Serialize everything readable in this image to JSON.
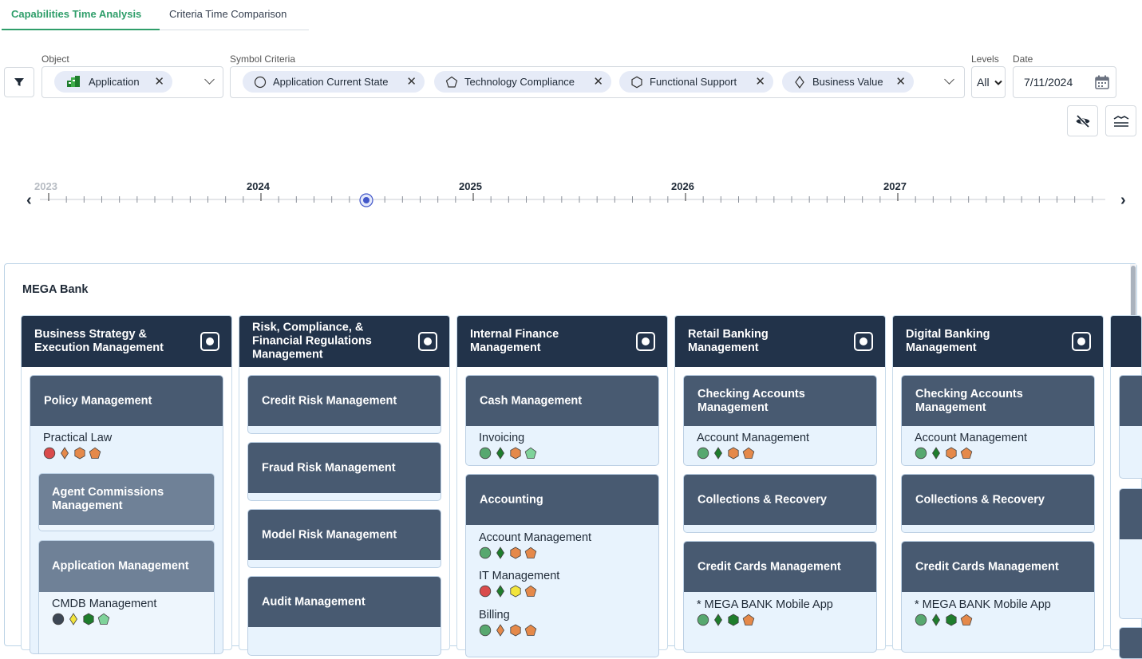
{
  "tabs": [
    {
      "label": "Capabilities Time Analysis",
      "active": true
    },
    {
      "label": "Criteria Time Comparison",
      "active": false
    }
  ],
  "filters": {
    "object_label": "Object",
    "object_value": "Application",
    "symbol_criteria_label": "Symbol Criteria",
    "symbol_criteria": [
      {
        "label": "Application Current State",
        "symbol": "circle"
      },
      {
        "label": "Technology Compliance",
        "symbol": "pentagon"
      },
      {
        "label": "Functional Support",
        "symbol": "hexagon"
      },
      {
        "label": "Business Value",
        "symbol": "diamond"
      }
    ],
    "levels_label": "Levels",
    "levels_value": "All",
    "date_label": "Date",
    "date_value": "7/11/2024"
  },
  "icons": {
    "filter": "filter-icon",
    "hide": "eye-off-icon",
    "layers": "layers-icon",
    "calendar": "calendar-icon"
  },
  "timeline": {
    "years": [
      "2023",
      "2024",
      "2025",
      "2026",
      "2027"
    ],
    "selected_date": "7/11/2024"
  },
  "colors": {
    "red": "#d94b4b",
    "green": "#57a86f",
    "dark_green": "#1e7d2c",
    "orange": "#e5894a",
    "yellow": "#f2e53d",
    "light_green": "#7fd39a",
    "dark": "#3d4754"
  },
  "map": {
    "title": "MEGA Bank",
    "columns": [
      {
        "title": "Business Strategy & Execution Management",
        "cards": [
          {
            "title": "Policy Management",
            "apps": [
              {
                "name": "Practical Law",
                "symbols": [
                  "circle:red",
                  "diamond:orange",
                  "hexagon:orange",
                  "pentagon:orange"
                ]
              }
            ],
            "subcards": [
              {
                "title": "Agent Commissions Management",
                "apps": []
              },
              {
                "title": "Application Management",
                "apps": [
                  {
                    "name": "CMDB Management",
                    "symbols": [
                      "circle:dark",
                      "diamond:yellow",
                      "hexagon:dark_green",
                      "pentagon:light_green"
                    ]
                  }
                ]
              }
            ]
          }
        ]
      },
      {
        "title": "Risk, Compliance, & Financial Regulations Management",
        "cards": [
          {
            "title": "Credit Risk Management",
            "apps": []
          },
          {
            "title": "Fraud Risk Management",
            "apps": []
          },
          {
            "title": "Model Risk Management",
            "apps": []
          },
          {
            "title": "Audit Management",
            "apps": []
          }
        ]
      },
      {
        "title": "Internal Finance Management",
        "cards": [
          {
            "title": "Cash Management",
            "apps": [
              {
                "name": "Invoicing",
                "symbols": [
                  "circle:green",
                  "diamond:dark_green",
                  "hexagon:orange",
                  "pentagon:light_green"
                ]
              }
            ]
          },
          {
            "title": "Accounting",
            "apps": [
              {
                "name": "Account Management",
                "symbols": [
                  "circle:green",
                  "diamond:dark_green",
                  "hexagon:orange",
                  "pentagon:orange"
                ]
              },
              {
                "name": "IT Management",
                "symbols": [
                  "circle:red",
                  "diamond:dark_green",
                  "hexagon:yellow",
                  "pentagon:orange"
                ]
              },
              {
                "name": "Billing",
                "symbols": [
                  "circle:green",
                  "diamond:orange",
                  "hexagon:orange",
                  "pentagon:orange"
                ]
              }
            ]
          }
        ]
      },
      {
        "title": "Retail Banking Management",
        "cards": [
          {
            "title": "Checking Accounts Management",
            "apps": [
              {
                "name": "Account Management",
                "symbols": [
                  "circle:green",
                  "diamond:dark_green",
                  "hexagon:orange",
                  "pentagon:orange"
                ]
              }
            ]
          },
          {
            "title": "Collections & Recovery",
            "apps": []
          },
          {
            "title": "Credit Cards Management",
            "apps": [
              {
                "name": "* MEGA BANK Mobile App",
                "symbols": [
                  "circle:green",
                  "diamond:dark_green",
                  "hexagon:dark_green",
                  "pentagon:orange"
                ]
              }
            ]
          }
        ]
      },
      {
        "title": "Digital Banking Management",
        "cards": [
          {
            "title": "Checking Accounts Management",
            "apps": [
              {
                "name": "Account Management",
                "symbols": [
                  "circle:green",
                  "diamond:dark_green",
                  "hexagon:orange",
                  "pentagon:orange"
                ]
              }
            ]
          },
          {
            "title": "Collections & Recovery",
            "apps": []
          },
          {
            "title": "Credit Cards Management",
            "apps": [
              {
                "name": "* MEGA BANK Mobile App",
                "symbols": [
                  "circle:green",
                  "diamond:dark_green",
                  "hexagon:dark_green",
                  "pentagon:orange"
                ]
              }
            ]
          }
        ]
      }
    ]
  }
}
